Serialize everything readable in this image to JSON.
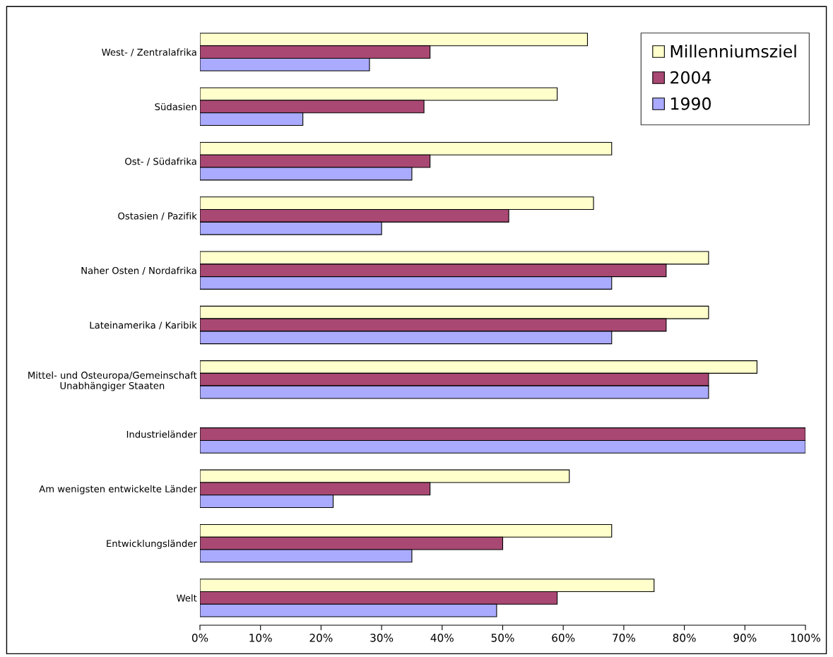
{
  "chart_data": {
    "type": "bar",
    "orientation": "horizontal",
    "categories": [
      "West- / Zentralafrika",
      "Südasien",
      "Ost- / Südafrika",
      "Ostasien / Pazifik",
      "Naher Osten / Nordafrika",
      "Lateinamerika / Karibik",
      "Mittel- und Osteuropa/Gemeinschaft\nUnabhängiger Staaten",
      "Industrieländer",
      "Am wenigsten entwickelte Länder",
      "Entwicklungsländer",
      "Welt"
    ],
    "series": [
      {
        "name": "Millenniumsziel",
        "color": "#ffffcc",
        "values": [
          64,
          59,
          68,
          65,
          84,
          84,
          92,
          null,
          61,
          68,
          75
        ]
      },
      {
        "name": "2004",
        "color": "#a94873",
        "values": [
          38,
          37,
          38,
          51,
          77,
          77,
          84,
          100,
          38,
          50,
          59
        ]
      },
      {
        "name": "1990",
        "color": "#aaaaff",
        "values": [
          28,
          17,
          35,
          30,
          68,
          68,
          84,
          100,
          22,
          35,
          49
        ]
      }
    ],
    "xlim": [
      0,
      100
    ],
    "xticks": [
      {
        "value": 0,
        "label": "0%"
      },
      {
        "value": 10,
        "label": "10%"
      },
      {
        "value": 20,
        "label": "20%"
      },
      {
        "value": 30,
        "label": "30%"
      },
      {
        "value": 40,
        "label": "40%"
      },
      {
        "value": 50,
        "label": "50%"
      },
      {
        "value": 60,
        "label": "60%"
      },
      {
        "value": 70,
        "label": "70%"
      },
      {
        "value": 80,
        "label": "80%"
      },
      {
        "value": 90,
        "label": "90%"
      },
      {
        "value": 100,
        "label": "100%"
      }
    ],
    "grid": false,
    "legend": "top right"
  }
}
